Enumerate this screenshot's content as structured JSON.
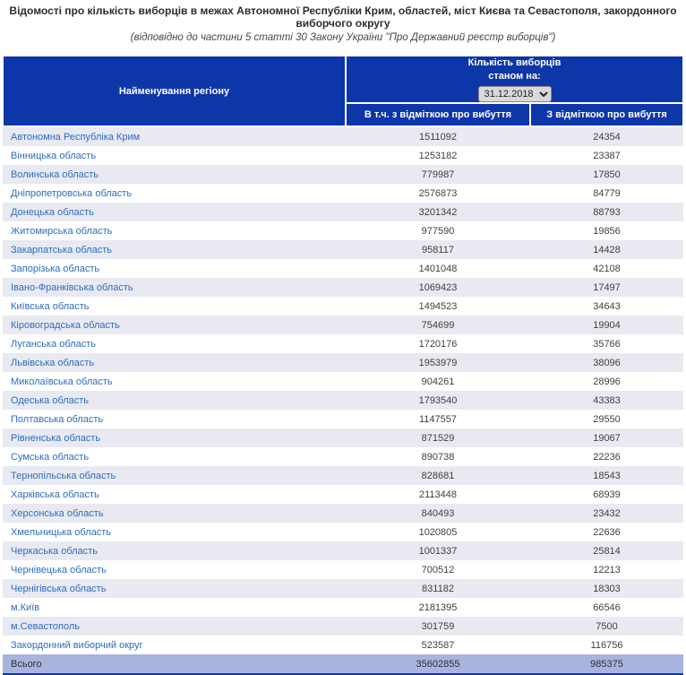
{
  "page": {
    "title": "Відомості про кількість виборців в межах Автономної Республіки Крим, областей, міст Києва та Севастополя, закордонного виборчого округу",
    "subtitle": "(відповідно до частини 5 статті 30 Закону України \"Про Державний реєстр виборців\")"
  },
  "table": {
    "region_header": "Найменування регіону",
    "count_header_line1": "Кількість виборців",
    "count_header_line2": "станом на:",
    "date_select": {
      "value": "31.12.2018"
    },
    "col1_header": "В т.ч. з відміткою про вибуття",
    "col2_header": "З відміткою про вибуття",
    "rows": [
      {
        "region": "Автономна Республіка Крим",
        "voters": "1511092",
        "departed": "24354"
      },
      {
        "region": "Вінницька область",
        "voters": "1253182",
        "departed": "23387"
      },
      {
        "region": "Волинська область",
        "voters": "779987",
        "departed": "17850"
      },
      {
        "region": "Дніпропетровська область",
        "voters": "2576873",
        "departed": "84779"
      },
      {
        "region": "Донецька область",
        "voters": "3201342",
        "departed": "88793"
      },
      {
        "region": "Житомирська область",
        "voters": "977590",
        "departed": "19856"
      },
      {
        "region": "Закарпатська область",
        "voters": "958117",
        "departed": "14428"
      },
      {
        "region": "Запорізька область",
        "voters": "1401048",
        "departed": "42108"
      },
      {
        "region": "Івано-Франківська область",
        "voters": "1069423",
        "departed": "17497"
      },
      {
        "region": "Київська область",
        "voters": "1494523",
        "departed": "34643"
      },
      {
        "region": "Кіровоградська область",
        "voters": "754699",
        "departed": "19904"
      },
      {
        "region": "Луганська область",
        "voters": "1720176",
        "departed": "35766"
      },
      {
        "region": "Львівська область",
        "voters": "1953979",
        "departed": "38096"
      },
      {
        "region": "Миколаївська область",
        "voters": "904261",
        "departed": "28996"
      },
      {
        "region": "Одеська область",
        "voters": "1793540",
        "departed": "43383"
      },
      {
        "region": "Полтавська область",
        "voters": "1147557",
        "departed": "29550"
      },
      {
        "region": "Рівненська область",
        "voters": "871529",
        "departed": "19067"
      },
      {
        "region": "Сумська область",
        "voters": "890738",
        "departed": "22236"
      },
      {
        "region": "Тернопільська область",
        "voters": "828681",
        "departed": "18543"
      },
      {
        "region": "Харківська область",
        "voters": "2113448",
        "departed": "68939"
      },
      {
        "region": "Херсонська область",
        "voters": "840493",
        "departed": "23432"
      },
      {
        "region": "Хмельницька область",
        "voters": "1020805",
        "departed": "22636"
      },
      {
        "region": "Черкаська область",
        "voters": "1001337",
        "departed": "25814"
      },
      {
        "region": "Чернівецька область",
        "voters": "700512",
        "departed": "12213"
      },
      {
        "region": "Чернігівська область",
        "voters": "831182",
        "departed": "18303"
      },
      {
        "region": "м.Київ",
        "voters": "2181395",
        "departed": "66546"
      },
      {
        "region": "м.Севастополь",
        "voters": "301759",
        "departed": "7500"
      },
      {
        "region": "Закордонний виборчий округ",
        "voters": "523587",
        "departed": "116756"
      }
    ],
    "total": {
      "label": "Всього",
      "voters": "35602855",
      "departed": "985375"
    }
  },
  "colors": {
    "header_background": "#0d36a8",
    "link_blue": "#2d6cbe",
    "row_stripe": "#e9e9f2",
    "total_row_background": "#a9b3de"
  }
}
